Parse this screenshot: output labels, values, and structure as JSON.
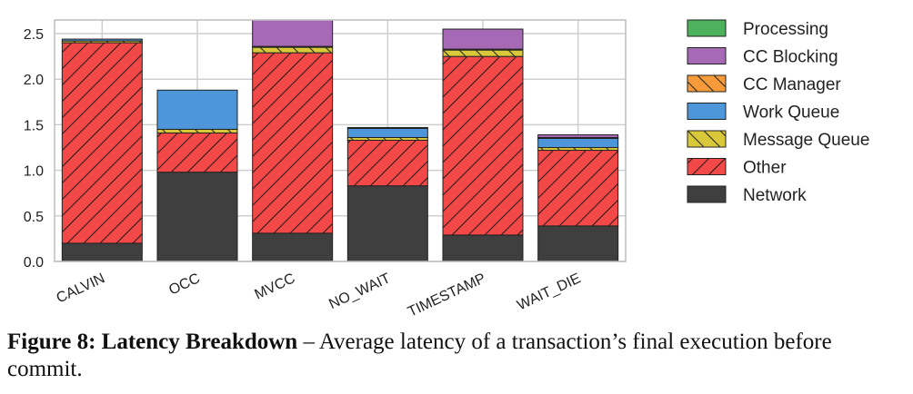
{
  "chart_data": {
    "type": "bar",
    "stacked": true,
    "categories": [
      "CALVIN",
      "OCC",
      "MVCC",
      "NO_WAIT",
      "TIMESTAMP",
      "WAIT_DIE"
    ],
    "ylim": [
      0,
      2.65
    ],
    "yticks": [
      "0.0",
      "0.5",
      "1.0",
      "1.5",
      "2.0",
      "2.5"
    ],
    "grid": true,
    "legend_position": "right",
    "series": [
      {
        "name": "Network",
        "color": "#3f3f3f",
        "hatch": "none",
        "values": [
          0.2,
          0.98,
          0.31,
          0.83,
          0.29,
          0.39
        ]
      },
      {
        "name": "Other",
        "color": "#f24848",
        "hatch": "diagonal",
        "values": [
          2.2,
          0.43,
          1.98,
          0.5,
          1.96,
          0.83
        ]
      },
      {
        "name": "Message Queue",
        "color": "#d9c93a",
        "hatch": "backslash",
        "values": [
          0.02,
          0.04,
          0.06,
          0.03,
          0.07,
          0.03
        ]
      },
      {
        "name": "Work Queue",
        "color": "#4d96d9",
        "hatch": "none",
        "values": [
          0.02,
          0.43,
          0.0,
          0.1,
          0.0,
          0.1
        ]
      },
      {
        "name": "CC Manager",
        "color": "#f79a3a",
        "hatch": "backslash",
        "values": [
          0.0,
          0.0,
          0.01,
          0.01,
          0.01,
          0.01
        ]
      },
      {
        "name": "CC Blocking",
        "color": "#a569b5",
        "hatch": "none",
        "values": [
          0.0,
          0.0,
          0.3,
          0.0,
          0.22,
          0.03
        ]
      },
      {
        "name": "Processing",
        "color": "#4cb35c",
        "hatch": "none",
        "values": [
          0.0,
          0.0,
          0.0,
          0.0,
          0.0,
          0.0
        ]
      }
    ],
    "legend_order": [
      "Processing",
      "CC Blocking",
      "CC Manager",
      "Work Queue",
      "Message Queue",
      "Other",
      "Network"
    ]
  },
  "caption": {
    "label": "Figure 8: Latency Breakdown",
    "text": " – Average latency of a transaction’s final execution before commit."
  }
}
